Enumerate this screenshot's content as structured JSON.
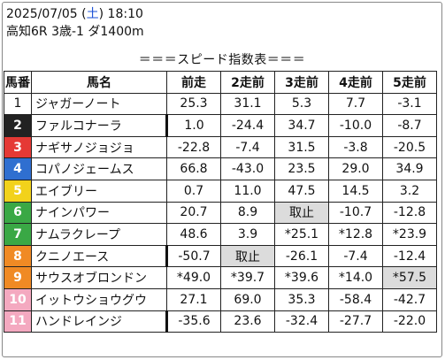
{
  "header": {
    "date": "2025/07/05",
    "day_open": " (",
    "day": "土",
    "day_close": ") ",
    "time": "18:10",
    "race": "高知6R 3歳-1 ダ1400m"
  },
  "banner": "＝＝＝スピード指数表＝＝＝",
  "table": {
    "headers": [
      "馬番",
      "馬名",
      "前走",
      "2走前",
      "3走前",
      "4走前",
      "5走前"
    ],
    "rows": [
      {
        "no": "1",
        "color": "#ffffff",
        "text": "#111111",
        "name": "ジャガーノート",
        "v": [
          "25.3",
          "31.1",
          "5.3",
          "7.7",
          "-3.1"
        ],
        "shade": [],
        "bar": false
      },
      {
        "no": "2",
        "color": "#222222",
        "text": "#ffffff",
        "name": "ファルコナーラ",
        "v": [
          "1.0",
          "-24.4",
          "34.7",
          "-10.0",
          "-8.7"
        ],
        "shade": [],
        "bar": true
      },
      {
        "no": "3",
        "color": "#e53935",
        "text": "#ffffff",
        "name": "ナギサノジョジョ",
        "v": [
          "-22.8",
          "-7.4",
          "31.5",
          "-3.8",
          "-20.5"
        ],
        "shade": [],
        "bar": false
      },
      {
        "no": "4",
        "color": "#2f6fd0",
        "text": "#ffffff",
        "name": "コパノジェームス",
        "v": [
          "66.8",
          "-43.0",
          "23.5",
          "29.0",
          "34.9"
        ],
        "shade": [],
        "bar": false
      },
      {
        "no": "5",
        "color": "#f2d21b",
        "text": "#ffffff",
        "name": "エイブリー",
        "v": [
          "0.7",
          "11.0",
          "47.5",
          "14.5",
          "3.2"
        ],
        "shade": [],
        "bar": false
      },
      {
        "no": "6",
        "color": "#3aa845",
        "text": "#ffffff",
        "name": "ナインパワー",
        "v": [
          "20.7",
          "8.9",
          "取止",
          "-10.7",
          "-12.8"
        ],
        "shade": [
          2
        ],
        "bar": false
      },
      {
        "no": "7",
        "color": "#3aa845",
        "text": "#ffffff",
        "name": "ナムラクレープ",
        "v": [
          "48.6",
          "3.9",
          "*25.1",
          "*12.8",
          "*23.9"
        ],
        "shade": [],
        "bar": false
      },
      {
        "no": "8",
        "color": "#f08a24",
        "text": "#ffffff",
        "name": "クニノエース",
        "v": [
          "-50.7",
          "取止",
          "-26.1",
          "-7.4",
          "-12.4"
        ],
        "shade": [
          1
        ],
        "bar": true
      },
      {
        "no": "9",
        "color": "#f08a24",
        "text": "#ffffff",
        "name": "サウスオブロンドン",
        "v": [
          "*49.0",
          "*39.7",
          "*39.6",
          "*14.0",
          "*57.5"
        ],
        "shade": [
          4
        ],
        "bar": false
      },
      {
        "no": "10",
        "color": "#f4a9c0",
        "text": "#ffffff",
        "name": "イットウショウグウ",
        "v": [
          "27.1",
          "69.0",
          "35.3",
          "-58.4",
          "-42.7"
        ],
        "shade": [],
        "bar": false
      },
      {
        "no": "11",
        "color": "#f4a9c0",
        "text": "#ffffff",
        "name": "ハンドレインジ",
        "v": [
          "-35.6",
          "23.6",
          "-32.4",
          "-27.7",
          "-22.0"
        ],
        "shade": [],
        "bar": true
      }
    ]
  }
}
